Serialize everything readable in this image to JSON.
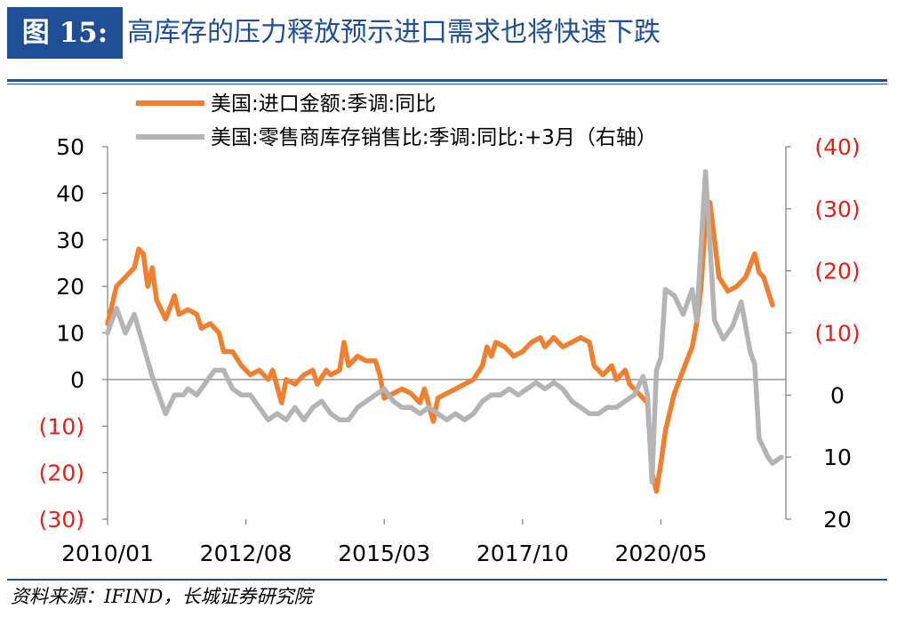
{
  "header": {
    "figure_label": "图 15:",
    "title": "高库存的压力释放预示进口需求也将快速下跌"
  },
  "footer": {
    "source": "资料来源：IFIND，长城证券研究院"
  },
  "colors": {
    "brand": "#1f4e96",
    "series_import": "#f08030",
    "series_inventory": "#b4b4b4",
    "negative_label": "#e0201b"
  },
  "chart_data": {
    "type": "line",
    "x_ticks": [
      "2010/01",
      "2012/08",
      "2015/03",
      "2017/10",
      "2020/05"
    ],
    "x_range": [
      "2010/01",
      "2022/09"
    ],
    "left_axis": {
      "ticks": [
        {
          "label": "50",
          "value": 50,
          "negative": false
        },
        {
          "label": "40",
          "value": 40,
          "negative": false
        },
        {
          "label": "30",
          "value": 30,
          "negative": false
        },
        {
          "label": "20",
          "value": 20,
          "negative": false
        },
        {
          "label": "10",
          "value": 10,
          "negative": false
        },
        {
          "label": "0",
          "value": 0,
          "negative": false
        },
        {
          "label": "(10)",
          "value": -10,
          "negative": true
        },
        {
          "label": "(20)",
          "value": -20,
          "negative": true
        },
        {
          "label": "(30)",
          "value": -30,
          "negative": true
        }
      ],
      "ylim": [
        -30,
        50
      ]
    },
    "right_axis": {
      "inverted": true,
      "ticks": [
        {
          "label": "(40)",
          "value": -40,
          "negative": true
        },
        {
          "label": "(30)",
          "value": -30,
          "negative": true
        },
        {
          "label": "(20)",
          "value": -20,
          "negative": true
        },
        {
          "label": "(10)",
          "value": -10,
          "negative": true
        },
        {
          "label": "0",
          "value": 0,
          "negative": false
        },
        {
          "label": "10",
          "value": 10,
          "negative": false
        },
        {
          "label": "20",
          "value": 20,
          "negative": false
        }
      ],
      "ylim": [
        -40,
        20
      ]
    },
    "legend": [
      {
        "name": "美国:进口金额:季调:同比",
        "color": "#f08030"
      },
      {
        "name": "美国:零售商库存销售比:季调:同比:+3月（右轴）",
        "color": "#b4b4b4"
      }
    ],
    "series": [
      {
        "name": "美国:进口金额:季调:同比",
        "axis": "left",
        "points": [
          [
            "2010/01",
            12
          ],
          [
            "2010/03",
            20
          ],
          [
            "2010/05",
            22
          ],
          [
            "2010/07",
            24
          ],
          [
            "2010/08",
            28
          ],
          [
            "2010/09",
            27
          ],
          [
            "2010/10",
            20
          ],
          [
            "2010/11",
            24
          ],
          [
            "2010/12",
            17
          ],
          [
            "2011/02",
            13
          ],
          [
            "2011/04",
            18
          ],
          [
            "2011/05",
            14
          ],
          [
            "2011/07",
            15
          ],
          [
            "2011/09",
            14
          ],
          [
            "2011/10",
            11
          ],
          [
            "2011/12",
            12
          ],
          [
            "2012/02",
            10
          ],
          [
            "2012/03",
            6
          ],
          [
            "2012/05",
            6
          ],
          [
            "2012/07",
            3
          ],
          [
            "2012/09",
            1
          ],
          [
            "2012/11",
            2
          ],
          [
            "2013/01",
            0
          ],
          [
            "2013/02",
            2
          ],
          [
            "2013/04",
            -5
          ],
          [
            "2013/05",
            0
          ],
          [
            "2013/07",
            -1
          ],
          [
            "2013/09",
            1
          ],
          [
            "2013/11",
            2
          ],
          [
            "2013/12",
            -1
          ],
          [
            "2014/02",
            2
          ],
          [
            "2014/03",
            1
          ],
          [
            "2014/05",
            2
          ],
          [
            "2014/06",
            8
          ],
          [
            "2014/07",
            3
          ],
          [
            "2014/09",
            5
          ],
          [
            "2014/11",
            4
          ],
          [
            "2015/01",
            4
          ],
          [
            "2015/02",
            1
          ],
          [
            "2015/03",
            -4
          ],
          [
            "2015/05",
            -3
          ],
          [
            "2015/07",
            -2
          ],
          [
            "2015/09",
            -3
          ],
          [
            "2015/11",
            -5
          ],
          [
            "2015/12",
            -2
          ],
          [
            "2016/02",
            -9
          ],
          [
            "2016/03",
            -4
          ],
          [
            "2016/05",
            -3
          ],
          [
            "2016/07",
            -2
          ],
          [
            "2016/09",
            -1
          ],
          [
            "2016/11",
            0
          ],
          [
            "2017/01",
            3
          ],
          [
            "2017/02",
            7
          ],
          [
            "2017/03",
            5
          ],
          [
            "2017/04",
            8
          ],
          [
            "2017/06",
            7
          ],
          [
            "2017/08",
            5
          ],
          [
            "2017/10",
            6
          ],
          [
            "2017/12",
            8
          ],
          [
            "2018/02",
            9
          ],
          [
            "2018/03",
            7
          ],
          [
            "2018/05",
            9
          ],
          [
            "2018/07",
            7
          ],
          [
            "2018/09",
            8
          ],
          [
            "2018/11",
            9
          ],
          [
            "2019/01",
            8
          ],
          [
            "2019/02",
            3
          ],
          [
            "2019/04",
            1
          ],
          [
            "2019/06",
            3
          ],
          [
            "2019/07",
            0
          ],
          [
            "2019/09",
            2
          ],
          [
            "2019/10",
            -1
          ],
          [
            "2019/12",
            -3
          ],
          [
            "2020/02",
            -5
          ],
          [
            "2020/03",
            -20
          ],
          [
            "2020/04",
            -24
          ],
          [
            "2020/05",
            -18
          ],
          [
            "2020/06",
            -11
          ],
          [
            "2020/08",
            -3
          ],
          [
            "2020/10",
            2
          ],
          [
            "2020/12",
            7
          ],
          [
            "2021/01",
            12
          ],
          [
            "2021/02",
            20
          ],
          [
            "2021/03",
            34
          ],
          [
            "2021/04",
            38
          ],
          [
            "2021/05",
            30
          ],
          [
            "2021/06",
            22
          ],
          [
            "2021/08",
            19
          ],
          [
            "2021/10",
            20
          ],
          [
            "2021/12",
            22
          ],
          [
            "2022/02",
            27
          ],
          [
            "2022/03",
            23
          ],
          [
            "2022/04",
            22
          ],
          [
            "2022/06",
            16
          ]
        ]
      },
      {
        "name": "美国:零售商库存销售比:季调:同比:+3月（右轴）",
        "axis": "right",
        "points": [
          [
            "2010/01",
            -10
          ],
          [
            "2010/03",
            -14
          ],
          [
            "2010/05",
            -10
          ],
          [
            "2010/07",
            -13
          ],
          [
            "2010/09",
            -8
          ],
          [
            "2010/11",
            -3
          ],
          [
            "2011/01",
            1
          ],
          [
            "2011/02",
            3
          ],
          [
            "2011/04",
            0
          ],
          [
            "2011/06",
            0
          ],
          [
            "2011/07",
            -1
          ],
          [
            "2011/09",
            0
          ],
          [
            "2011/11",
            -2
          ],
          [
            "2012/01",
            -4
          ],
          [
            "2012/03",
            -4
          ],
          [
            "2012/05",
            -1
          ],
          [
            "2012/07",
            0
          ],
          [
            "2012/09",
            0
          ],
          [
            "2012/11",
            2
          ],
          [
            "2013/01",
            4
          ],
          [
            "2013/03",
            3
          ],
          [
            "2013/05",
            4
          ],
          [
            "2013/07",
            2
          ],
          [
            "2013/09",
            4
          ],
          [
            "2013/11",
            2
          ],
          [
            "2014/01",
            1
          ],
          [
            "2014/03",
            3
          ],
          [
            "2014/05",
            4
          ],
          [
            "2014/07",
            4
          ],
          [
            "2014/09",
            2
          ],
          [
            "2014/11",
            1
          ],
          [
            "2015/01",
            0
          ],
          [
            "2015/03",
            -1
          ],
          [
            "2015/05",
            1
          ],
          [
            "2015/07",
            2
          ],
          [
            "2015/09",
            2
          ],
          [
            "2015/11",
            3
          ],
          [
            "2016/01",
            2
          ],
          [
            "2016/03",
            3
          ],
          [
            "2016/05",
            4
          ],
          [
            "2016/07",
            3
          ],
          [
            "2016/09",
            4
          ],
          [
            "2016/11",
            3
          ],
          [
            "2017/01",
            1
          ],
          [
            "2017/03",
            0
          ],
          [
            "2017/05",
            0
          ],
          [
            "2017/07",
            -1
          ],
          [
            "2017/09",
            0
          ],
          [
            "2017/11",
            -1
          ],
          [
            "2018/01",
            -2
          ],
          [
            "2018/03",
            -1
          ],
          [
            "2018/05",
            -2
          ],
          [
            "2018/07",
            -1
          ],
          [
            "2018/09",
            1
          ],
          [
            "2018/11",
            2
          ],
          [
            "2019/01",
            3
          ],
          [
            "2019/03",
            3
          ],
          [
            "2019/05",
            2
          ],
          [
            "2019/07",
            2
          ],
          [
            "2019/09",
            1
          ],
          [
            "2019/11",
            0
          ],
          [
            "2020/01",
            -3
          ],
          [
            "2020/02",
            0
          ],
          [
            "2020/03",
            14
          ],
          [
            "2020/04",
            -4
          ],
          [
            "2020/05",
            -6
          ],
          [
            "2020/06",
            -17
          ],
          [
            "2020/08",
            -16
          ],
          [
            "2020/10",
            -13
          ],
          [
            "2020/12",
            -17
          ],
          [
            "2021/01",
            -12
          ],
          [
            "2021/03",
            -36
          ],
          [
            "2021/05",
            -12
          ],
          [
            "2021/07",
            -9
          ],
          [
            "2021/09",
            -11
          ],
          [
            "2021/11",
            -15
          ],
          [
            "2022/01",
            -7
          ],
          [
            "2022/02",
            -5
          ],
          [
            "2022/03",
            7
          ],
          [
            "2022/05",
            10
          ],
          [
            "2022/06",
            11
          ],
          [
            "2022/08",
            10
          ]
        ]
      }
    ]
  }
}
